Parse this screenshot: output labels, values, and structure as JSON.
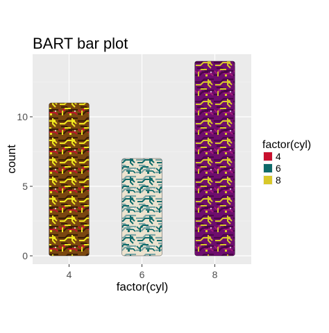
{
  "chart_data": {
    "type": "bar",
    "title": "BART bar plot",
    "xlabel": "factor(cyl)",
    "ylabel": "count",
    "categories": [
      "4",
      "6",
      "8"
    ],
    "values": [
      11,
      7,
      14
    ],
    "ylim": [
      0,
      14.7
    ],
    "yticks": [
      0,
      5,
      10
    ],
    "grid": true,
    "panel_background": "#ebebeb",
    "legend": {
      "title": "factor(cyl)",
      "position": "right",
      "entries": [
        "4",
        "6",
        "8"
      ]
    },
    "fill_pattern": "circuit-board",
    "series_colors": [
      {
        "base": "#7a4710",
        "primary": "#f0ea20",
        "secondary": "#c8102e",
        "line": "#3a1e06"
      },
      {
        "base": "#ece3cf",
        "primary": "#0e6a6a",
        "secondary": "#0e6a6a",
        "line": "#7aa4a4"
      },
      {
        "base": "#6e0e6e",
        "primary": "#d8c82a",
        "secondary": "#a8187a",
        "line": "#4a0648"
      }
    ],
    "legend_key_colors": [
      "#c8102e",
      "#0e6a6a",
      "#d8c82a"
    ]
  }
}
